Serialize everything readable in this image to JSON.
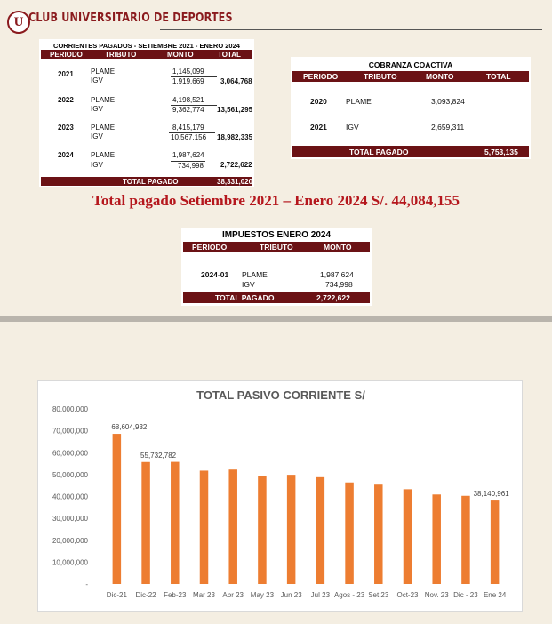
{
  "header": {
    "logo_letter": "U",
    "club_name": "CLUB UNIVERSITARIO DE DEPORTES"
  },
  "table1": {
    "title": "CORRIENTES PAGADOS - SETIEMBRE 2021 - ENERO 2024",
    "columns": [
      "PERIODO",
      "TRIBUTO",
      "MONTO",
      "TOTAL"
    ],
    "groups": [
      {
        "period": "2021",
        "rows": [
          {
            "tributo": "PLAME",
            "monto": "1,145,099"
          },
          {
            "tributo": "IGV",
            "monto": "1,919,669"
          }
        ],
        "total": "3,064,768"
      },
      {
        "period": "2022",
        "rows": [
          {
            "tributo": "PLAME",
            "monto": "4,198,521"
          },
          {
            "tributo": "IGV",
            "monto": "9,362,774"
          }
        ],
        "total": "13,561,295"
      },
      {
        "period": "2023",
        "rows": [
          {
            "tributo": "PLAME",
            "monto": "8,415,179"
          },
          {
            "tributo": "IGV",
            "monto": "10,567,156"
          }
        ],
        "total": "18,982,335"
      },
      {
        "period": "2024",
        "rows": [
          {
            "tributo": "PLAME",
            "monto": "1,987,624"
          },
          {
            "tributo": "IGV",
            "monto": "734,998"
          }
        ],
        "total": "2,722,622"
      }
    ],
    "footer_label": "TOTAL PAGADO",
    "footer_value": "38,331,020"
  },
  "table2": {
    "title": "COBRANZA COACTIVA",
    "columns": [
      "PERIODO",
      "TRIBUTO",
      "MONTO",
      "TOTAL"
    ],
    "rows": [
      {
        "period": "2020",
        "tributo": "PLAME",
        "monto": "3,093,824"
      },
      {
        "period": "2021",
        "tributo": "IGV",
        "monto": "2,659,311"
      }
    ],
    "footer_label": "TOTAL PAGADO",
    "footer_value": "5,753,135"
  },
  "total_line": "Total pagado Setiembre 2021 – Enero 2024 S/. 44,084,155",
  "table3": {
    "title": "IMPUESTOS ENERO 2024",
    "columns": [
      "PERIODO",
      "TRIBUTO",
      "MONTO"
    ],
    "period": "2024-01",
    "rows": [
      {
        "tributo": "PLAME",
        "monto": "1,987,624"
      },
      {
        "tributo": "IGV",
        "monto": "734,998"
      }
    ],
    "footer_label": "TOTAL PAGADO",
    "footer_value": "2,722,622"
  },
  "colors": {
    "brand_red": "#8a1a1d",
    "header_maroon": "#6b1215",
    "bar_orange": "#ed7d31",
    "title_red": "#b5171d"
  },
  "chart_data": {
    "type": "bar",
    "title": "TOTAL PASIVO CORRIENTE S/",
    "categories": [
      "Dic-21",
      "Dic-22",
      "Feb-23",
      "Mar 23",
      "Abr 23",
      "May 23",
      "Jun 23",
      "Jul 23",
      "Agos - 23",
      "Set 23",
      "Oct-23",
      "Nov. 23",
      "Dic - 23",
      "Ene 24"
    ],
    "values": [
      68604932,
      55732782,
      55800000,
      51800000,
      52300000,
      49200000,
      49900000,
      48800000,
      46400000,
      45400000,
      43300000,
      40900000,
      40300000,
      38140961
    ],
    "data_labels": {
      "0": "68,604,932",
      "1": "55,732,782",
      "13": "38,140,961"
    },
    "ylim": [
      0,
      80000000
    ],
    "yticks": [
      0,
      10000000,
      20000000,
      30000000,
      40000000,
      50000000,
      60000000,
      70000000,
      80000000
    ],
    "ytick_labels": [
      "-",
      "10,000,000",
      "20,000,000",
      "30,000,000",
      "40,000,000",
      "50,000,000",
      "60,000,000",
      "70,000,000",
      "80,000,000"
    ],
    "xlabel": "",
    "ylabel": ""
  }
}
